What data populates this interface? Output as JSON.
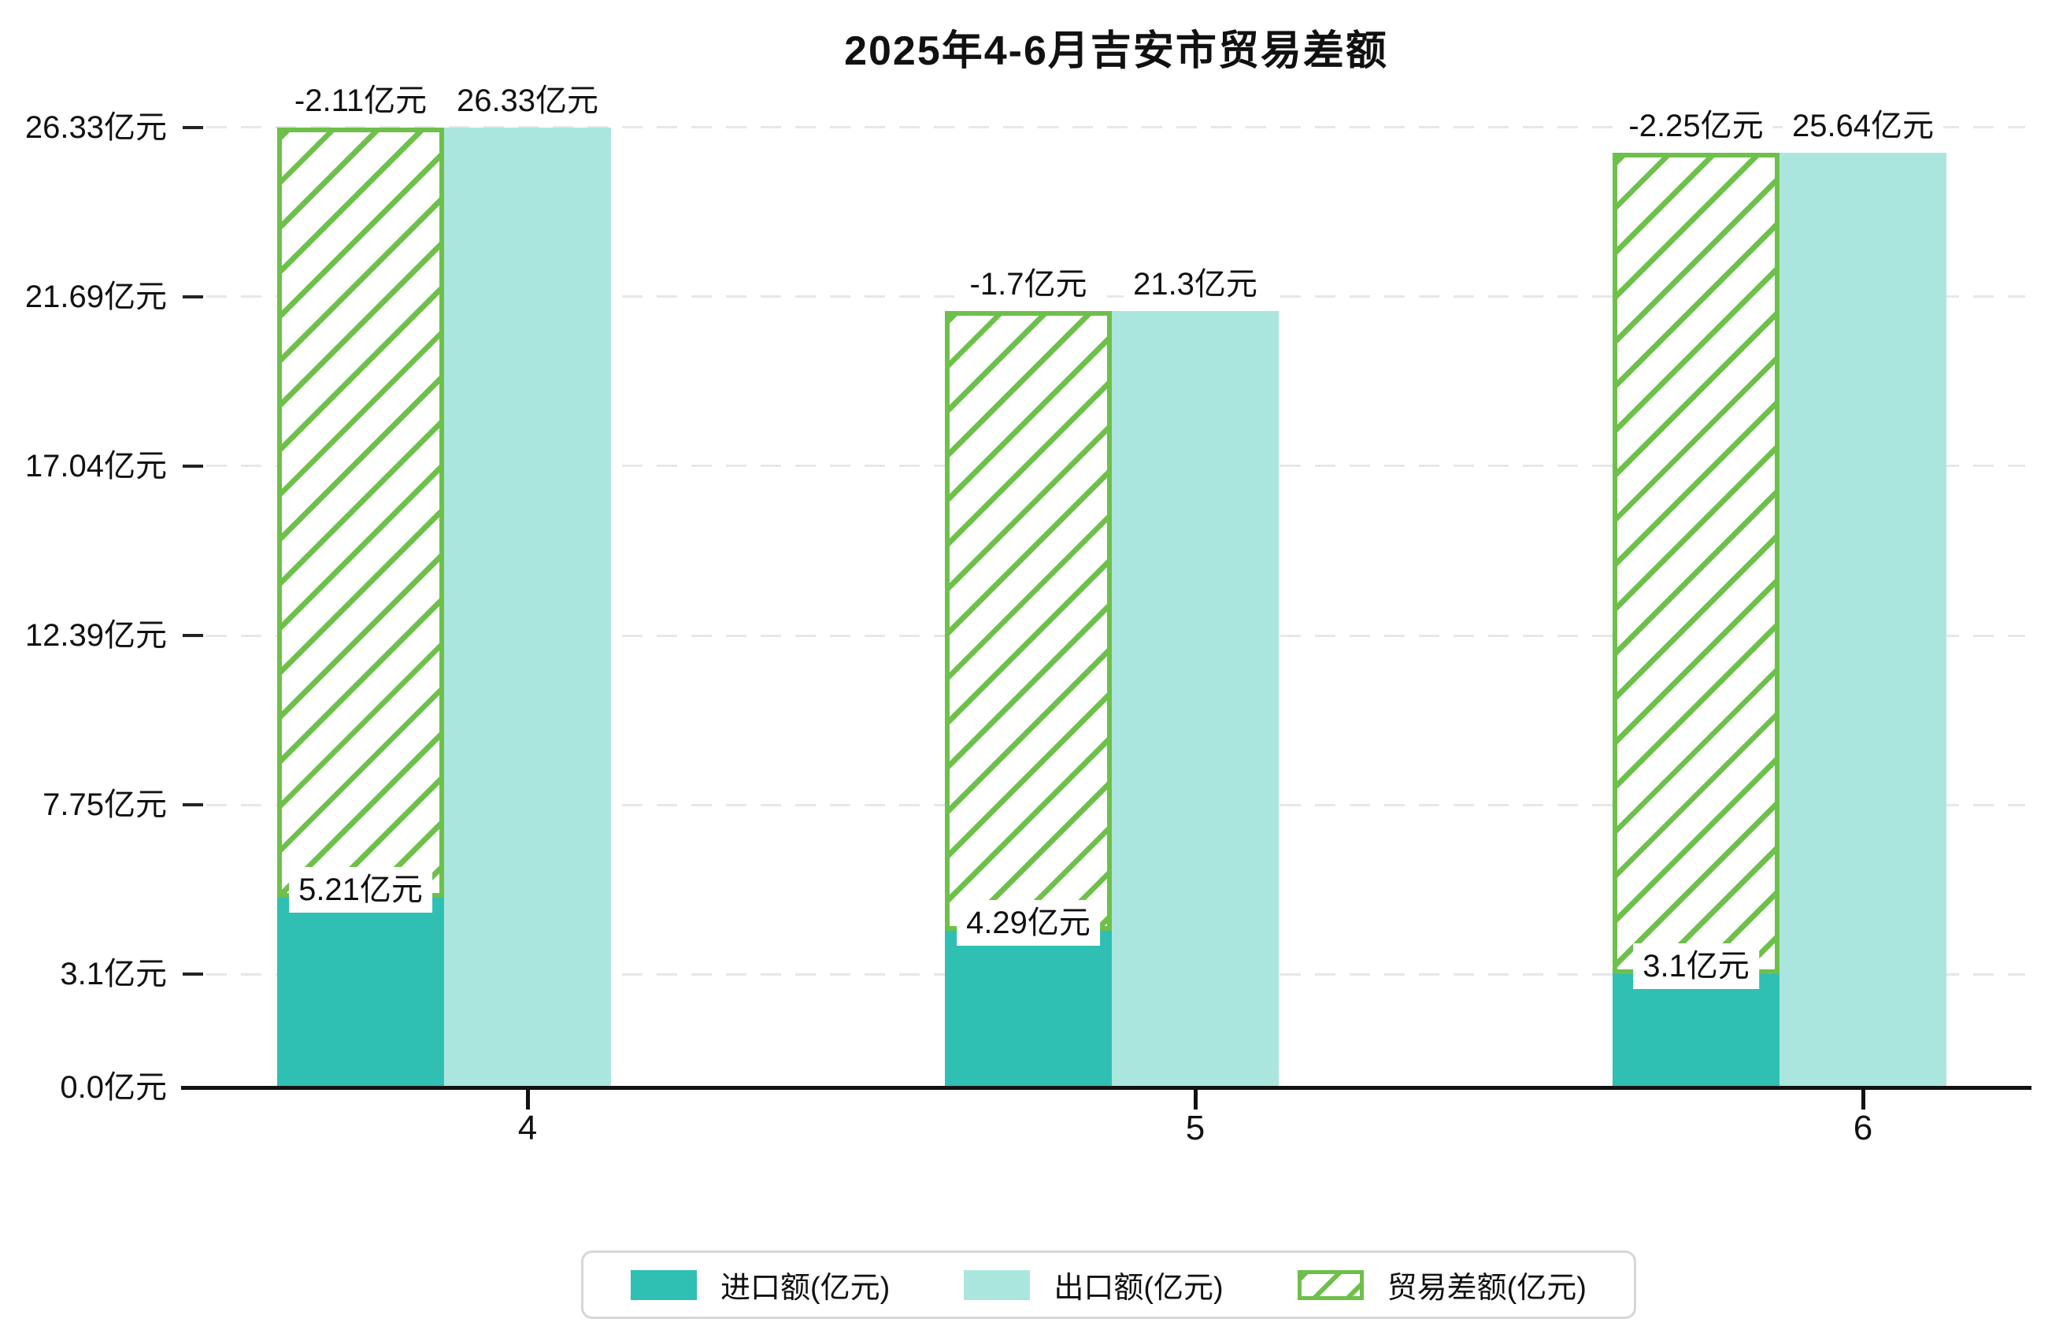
{
  "title": "2025年4-6月吉安市贸易差额",
  "legend": {
    "items": [
      {
        "label": "进口额(亿元)",
        "swatch": "solid-teal"
      },
      {
        "label": "出口额(亿元)",
        "swatch": "solid-light-cyan"
      },
      {
        "label": "贸易差额(亿元)",
        "swatch": "green-hatched"
      }
    ]
  },
  "colors": {
    "import": "#2FBFB3",
    "export": "#ABE6DE",
    "balance_hatch": "#6DC04A",
    "gridline": "#E7E7E7",
    "axis": "#111111",
    "legend_border": "#D6D6D6",
    "background": "#FFFFFF",
    "text": "#111111"
  },
  "chart_data": {
    "type": "bar",
    "categories": [
      "4",
      "5",
      "6"
    ],
    "series": [
      {
        "name": "进口额(亿元)",
        "values": [
          5.21,
          4.29,
          3.1
        ],
        "value_labels": [
          "5.21亿元",
          "4.29亿元",
          "3.1亿元"
        ],
        "style": "solid teal bar, left column of each group"
      },
      {
        "name": "出口额(亿元)",
        "values": [
          26.33,
          21.3,
          25.64
        ],
        "value_labels": [
          "26.33亿元",
          "21.3亿元",
          "25.64亿元"
        ],
        "style": "solid light-cyan bar, right column of each group"
      },
      {
        "name": "贸易差额(亿元)",
        "values": [
          -2.11,
          -1.7,
          -2.25
        ],
        "value_labels": [
          "-2.11亿元",
          "-1.7亿元",
          "-2.25亿元"
        ],
        "style": "green-bordered hatched floating bar drawn over the import column, spanning from the import value up to the export value"
      }
    ],
    "yticks": [
      "0.0亿元",
      "3.1亿元",
      "7.75亿元",
      "12.39亿元",
      "17.04亿元",
      "21.69亿元",
      "26.33亿元"
    ],
    "ytick_values": [
      0.0,
      3.1,
      7.75,
      12.39,
      17.04,
      21.69,
      26.33
    ],
    "ylim": [
      0,
      26.33
    ],
    "xlabel": "",
    "ylabel": "",
    "grid": "horizontal dashed light-gray lines at each y tick",
    "legend_position": "bottom center, rounded light-gray box"
  }
}
